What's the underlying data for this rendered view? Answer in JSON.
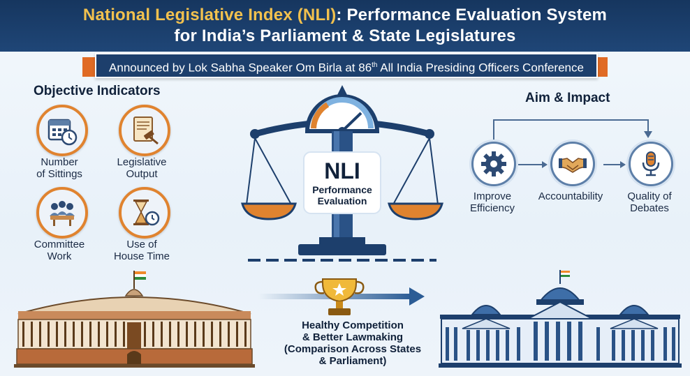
{
  "header": {
    "title_accent": "National Legislative Index (NLI)",
    "title_rest": ": Performance Evaluation System",
    "title_line2": "for India’s Parliament & State Legislatures"
  },
  "ribbon": {
    "text_before": "Announced by Lok Sabha Speaker Om Birla at 86",
    "superscript": "th",
    "text_after": " All India Presiding Officers Conference"
  },
  "objective": {
    "heading": "Objective Indicators",
    "items": [
      {
        "line1": "Number",
        "line2": "of Sittings",
        "icon": "calendar-clock-icon"
      },
      {
        "line1": "Legislative",
        "line2": "Output",
        "icon": "scroll-gavel-icon"
      },
      {
        "line1": "Committee",
        "line2": "Work",
        "icon": "meeting-table-icon"
      },
      {
        "line1": "Use of",
        "line2": "House Time",
        "icon": "hourglass-clock-icon"
      }
    ]
  },
  "center": {
    "nli": "NLI",
    "line1": "Performance",
    "line2": "Evaluation"
  },
  "impact": {
    "heading": "Aim & Impact",
    "items": [
      {
        "line1": "Improve",
        "line2": "Efficiency",
        "icon": "gear-icon"
      },
      {
        "line1": "Accountability",
        "line2": "",
        "icon": "handshake-icon"
      },
      {
        "line1": "Quality of",
        "line2": "Debates",
        "icon": "microphone-icon"
      }
    ]
  },
  "bottom": {
    "line1": "Healthy Competition",
    "line2": "& Better Lawmaking",
    "line3": "(Comparison Across States",
    "line4": "& Parliament)"
  },
  "colors": {
    "navy": "#1d3f6c",
    "orange": "#e0832f",
    "gold": "#f2c14e"
  }
}
